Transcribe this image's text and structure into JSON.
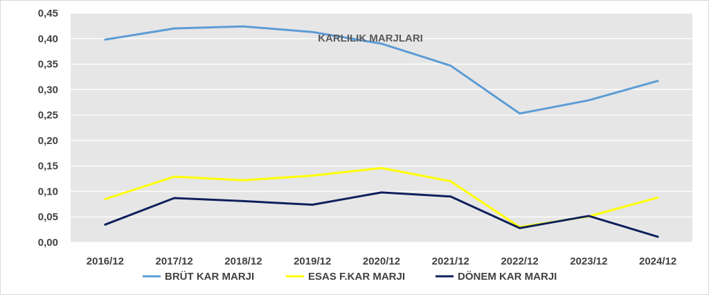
{
  "chart_data": {
    "type": "line",
    "title": "KARLILIK MARJLARI",
    "categories": [
      "2016/12",
      "2017/12",
      "2018/12",
      "2019/12",
      "2020/12",
      "2021/12",
      "2022/12",
      "2023/12",
      "2024/12"
    ],
    "ylim": [
      0,
      0.45
    ],
    "yticks": [
      "0,00",
      "0,05",
      "0,10",
      "0,15",
      "0,20",
      "0,25",
      "0,30",
      "0,35",
      "0,40",
      "0,45"
    ],
    "grid": true,
    "legend": "bottom",
    "series": [
      {
        "name": "BRÜT KAR MARJI",
        "color": "#5b9bd5",
        "values": [
          0.398,
          0.42,
          0.424,
          0.413,
          0.39,
          0.347,
          0.253,
          0.279,
          0.317
        ]
      },
      {
        "name": "ESAS F.KAR MARJI",
        "color": "#ffff00",
        "values": [
          0.085,
          0.129,
          0.122,
          0.131,
          0.146,
          0.12,
          0.03,
          0.051,
          0.088
        ]
      },
      {
        "name": "DÖNEM KAR MARJI",
        "color": "#0d1f5c",
        "values": [
          0.035,
          0.087,
          0.081,
          0.074,
          0.098,
          0.09,
          0.028,
          0.052,
          0.011
        ]
      }
    ]
  }
}
